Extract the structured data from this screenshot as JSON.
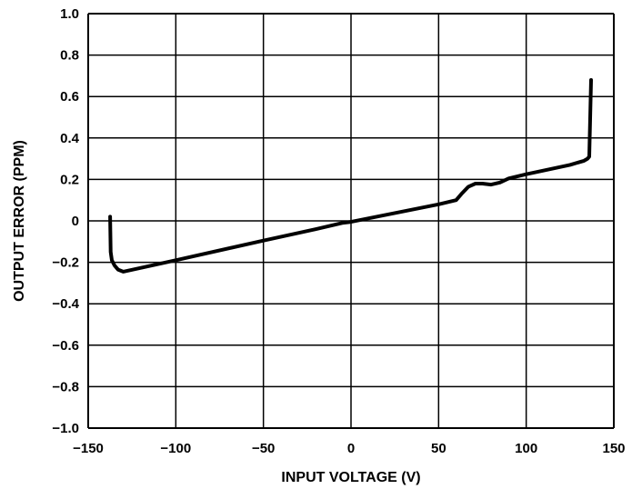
{
  "chart_data": {
    "type": "line",
    "title": "",
    "xlabel": "INPUT VOLTAGE (V)",
    "ylabel": "OUTPUT ERROR (PPM)",
    "xlim": [
      -150,
      150
    ],
    "ylim": [
      -1.0,
      1.0
    ],
    "grid": true,
    "xticks": [
      -150,
      -100,
      -50,
      0,
      50,
      100,
      150
    ],
    "xtick_labels": [
      "−150",
      "−100",
      "−50",
      "0",
      "50",
      "100",
      "150"
    ],
    "yticks": [
      1.0,
      0.8,
      0.6,
      0.4,
      0.2,
      0,
      -0.2,
      -0.4,
      -0.6,
      -0.8,
      -1.0
    ],
    "ytick_labels": [
      "1.0",
      "0.8",
      "0.6",
      "0.4",
      "0.2",
      "0",
      "−0.2",
      "−0.4",
      "−0.6",
      "−0.8",
      "−1.0"
    ],
    "line_color": "#000000",
    "series": [
      {
        "x": [
          -137.5,
          -137.2,
          -136.5,
          -135,
          -133,
          -130,
          -100,
          -50,
          -20,
          -5,
          0,
          50,
          60,
          63,
          67,
          71,
          75,
          80,
          85,
          90,
          100,
          125,
          133,
          135,
          136,
          137
        ],
        "y": [
          0.02,
          -0.15,
          -0.19,
          -0.215,
          -0.235,
          -0.245,
          -0.19,
          -0.095,
          -0.04,
          -0.01,
          -0.005,
          0.08,
          0.1,
          0.13,
          0.165,
          0.18,
          0.18,
          0.175,
          0.185,
          0.205,
          0.225,
          0.27,
          0.29,
          0.3,
          0.31,
          0.68
        ]
      }
    ]
  }
}
